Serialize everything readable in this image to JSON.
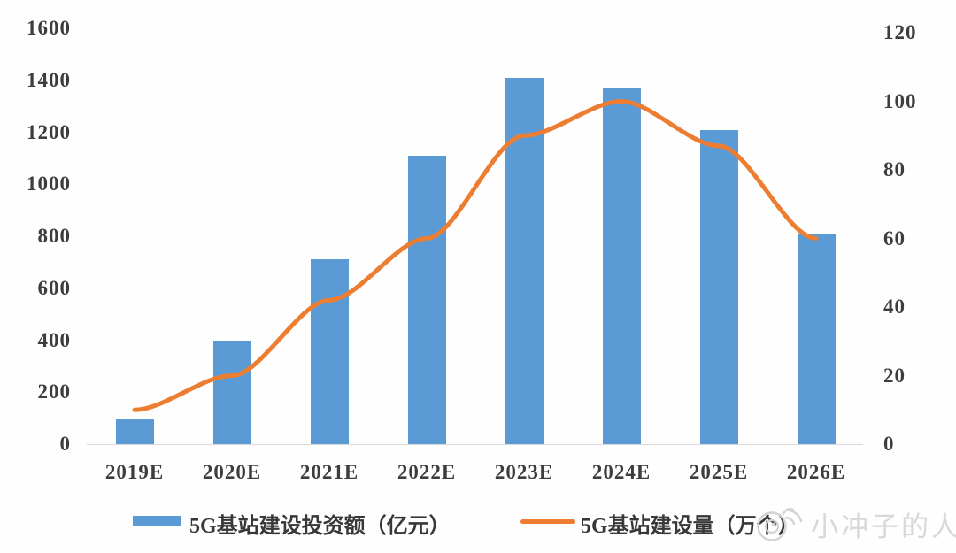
{
  "chart_data": {
    "type": "bar",
    "subtype": "combo-bar-line-dual-axis",
    "categories": [
      "2019E",
      "2020E",
      "2021E",
      "2022E",
      "2023E",
      "2024E",
      "2025E",
      "2026E"
    ],
    "series": [
      {
        "name": "5G基站建设投资额（亿元）",
        "render": "bar",
        "axis": "left",
        "color": "#5B9BD5",
        "values": [
          100,
          400,
          710,
          1110,
          1410,
          1370,
          1210,
          810
        ]
      },
      {
        "name": "5G基站建设量（万个）",
        "render": "line",
        "axis": "right",
        "color": "#ED7D31",
        "values": [
          10,
          20,
          42,
          60,
          90,
          100,
          87,
          60
        ]
      }
    ],
    "title": "",
    "xlabel": "",
    "ylabel_left": "亿元",
    "ylabel_right": "万个",
    "left_axis": {
      "min": 0,
      "max": 1600,
      "step": 200,
      "ticks": [
        0,
        200,
        400,
        600,
        800,
        1000,
        1200,
        1400,
        1600
      ]
    },
    "right_axis": {
      "min": 0,
      "max": 120,
      "step": 20,
      "ticks": [
        0,
        20,
        40,
        60,
        80,
        100,
        120
      ]
    },
    "grid": false,
    "legend_position": "bottom"
  },
  "colors": {
    "bar": "#5B9BD5",
    "line": "#ED7D31",
    "axis_text": "#3d3d3d",
    "axis_line": "#d9d9d9",
    "watermark": "#d8d8d8",
    "background": "#fefefe"
  },
  "watermark": {
    "icon": "weibo-icon",
    "text": "小冲子的人"
  }
}
